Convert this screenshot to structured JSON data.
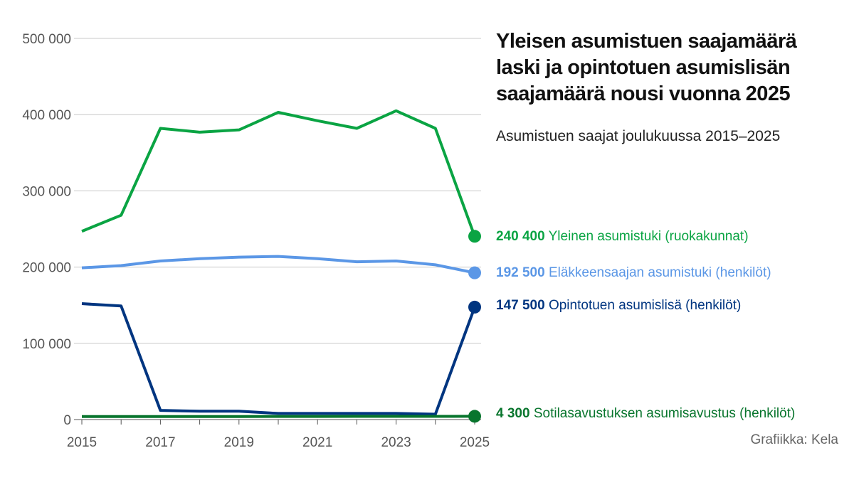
{
  "title": "Yleisen asumistuen saajamäärä laski ja opintotuen asumislisän saajamäärä nousi vuonna 2025",
  "subtitle": "Asumistuen saajat joulukuussa 2015–2025",
  "source": "Grafiikka: Kela",
  "chart_data": {
    "type": "line",
    "title": "Yleisen asumistuen saajamäärä laski ja opintotuen asumislisän saajamäärä nousi vuonna 2025",
    "subtitle": "Asumistuen saajat joulukuussa 2015–2025",
    "x": [
      2015,
      2016,
      2017,
      2018,
      2019,
      2020,
      2021,
      2022,
      2023,
      2024,
      2025
    ],
    "xticks": [
      "2015",
      "2017",
      "2019",
      "2021",
      "2023",
      "2025"
    ],
    "yticks": [
      "0",
      "100 000",
      "200 000",
      "300 000",
      "400 000",
      "500 000"
    ],
    "ylim": [
      0,
      500000
    ],
    "grid": true,
    "legend": "right, end labels",
    "series": [
      {
        "name": "Yleinen asumistuki (ruokakunnat)",
        "end_label": "240 400",
        "color": "#0aa443",
        "values": [
          247000,
          268000,
          382000,
          377000,
          380000,
          403000,
          392000,
          382000,
          405000,
          382000,
          240400
        ]
      },
      {
        "name": "Eläkkeensaajan asumistuki (henkilöt)",
        "end_label": "192 500",
        "color": "#5b97e6",
        "values": [
          199000,
          202000,
          208000,
          211000,
          213000,
          214000,
          211000,
          207000,
          208000,
          203000,
          192500
        ]
      },
      {
        "name": "Opintotuen asumislisä (henkilöt)",
        "end_label": "147 500",
        "color": "#003580",
        "values": [
          152000,
          149000,
          12000,
          11000,
          11000,
          8000,
          8000,
          8000,
          8000,
          7000,
          147500
        ]
      },
      {
        "name": "Sotilasavustuksen asumisavustus (henkilöt)",
        "end_label": "4 300",
        "color": "#08752d",
        "values": [
          4000,
          4000,
          4000,
          4000,
          4000,
          4100,
          4100,
          4200,
          4200,
          4200,
          4300
        ]
      }
    ]
  }
}
